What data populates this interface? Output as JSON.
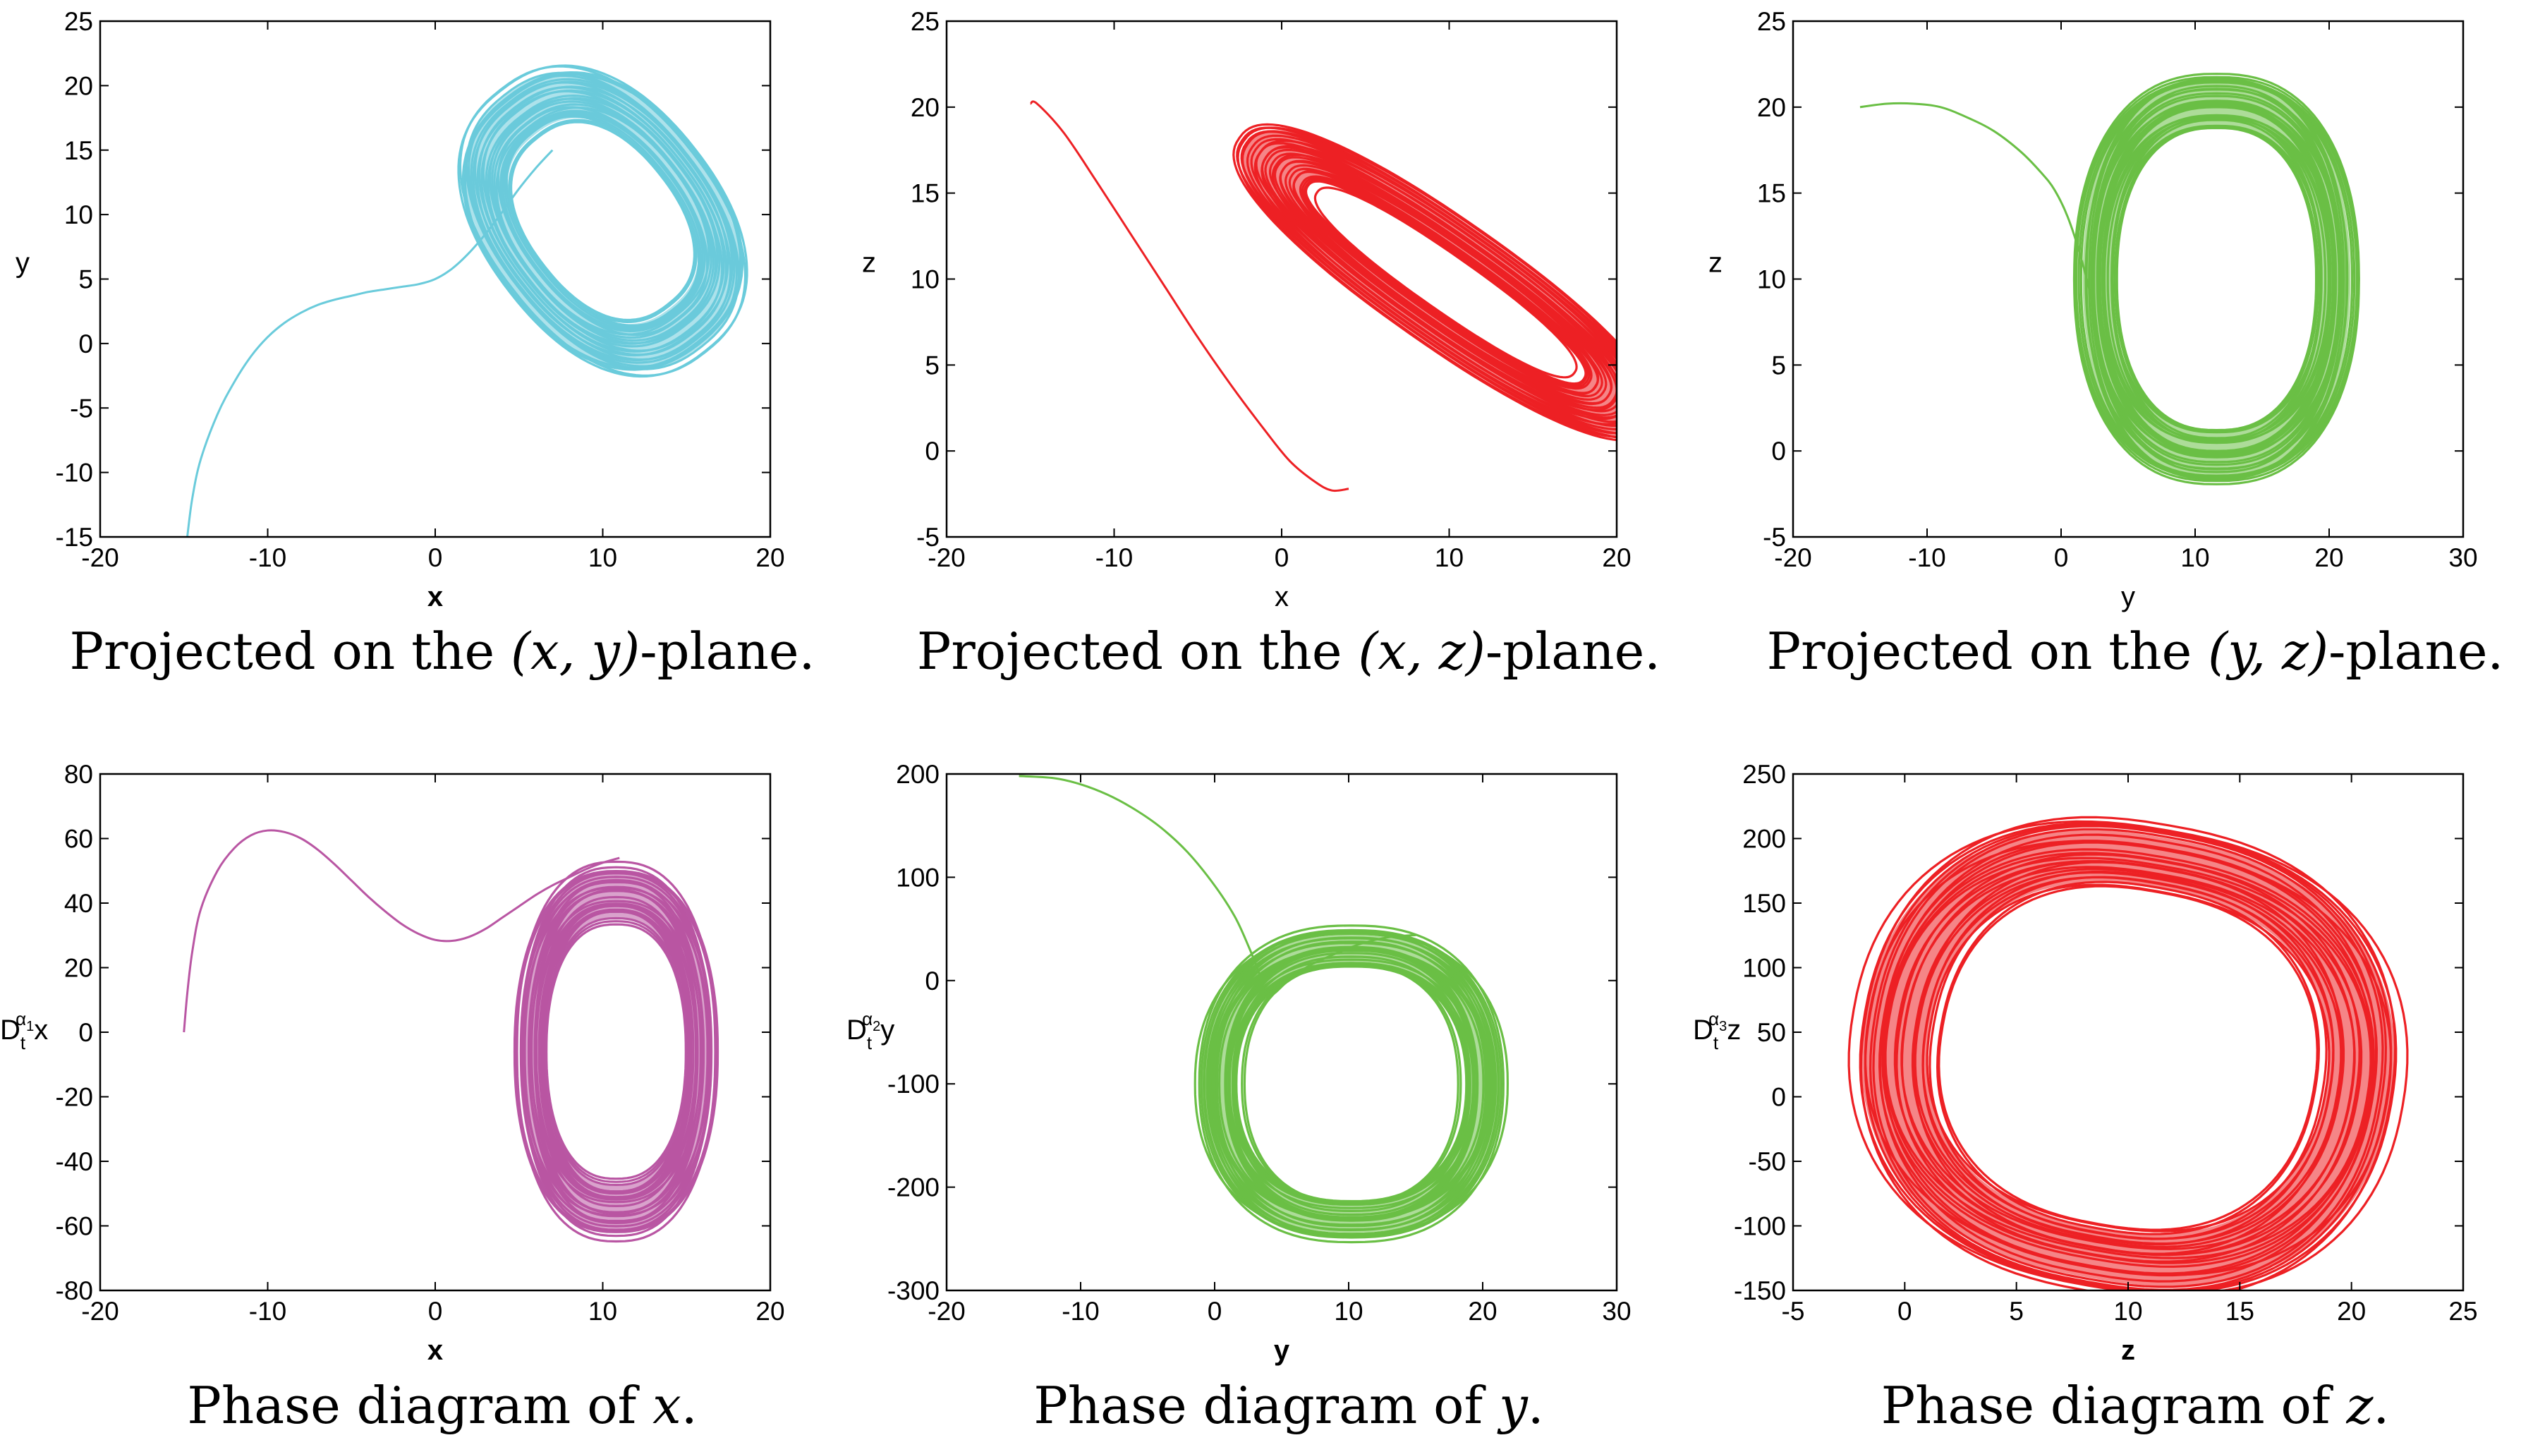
{
  "chart_data": [
    {
      "type": "line",
      "id": "p1",
      "color": "#6acbdb",
      "xlabel": "x",
      "ylabel": "y",
      "xlabel_bold": true,
      "xlim": [
        -20,
        20
      ],
      "ylim": [
        -15,
        25
      ],
      "xticks": [
        -20,
        -10,
        0,
        10,
        20
      ],
      "yticks": [
        -15,
        -10,
        -5,
        0,
        5,
        10,
        15,
        20,
        25
      ],
      "caption": "Projected on the (x, y)-plane.",
      "series": [
        {
          "name": "transient",
          "x": [
            -14.8,
            -14.5,
            -14,
            -13,
            -12,
            -11,
            -10,
            -9,
            -8,
            -7,
            -6,
            -5,
            -4,
            -3,
            -2,
            -1,
            0,
            1,
            2,
            3,
            4,
            5,
            6,
            7
          ],
          "y": [
            -15,
            -12,
            -9,
            -5.5,
            -3,
            -1,
            0.5,
            1.6,
            2.4,
            3,
            3.4,
            3.7,
            4,
            4.2,
            4.4,
            4.6,
            5,
            5.8,
            7,
            8.5,
            10.2,
            12,
            13.6,
            15
          ]
        },
        {
          "name": "attractor",
          "center": [
            10,
            9.5
          ],
          "radius_outer": [
            7,
            12.8
          ],
          "radius_inner": [
            4.4,
            8.2
          ],
          "tilt_deg": 38
        }
      ]
    },
    {
      "type": "line",
      "id": "p2",
      "color": "#ed2024",
      "xlabel": "x",
      "ylabel": "z",
      "xlabel_bold": false,
      "xlim": [
        -20,
        20
      ],
      "ylim": [
        -5,
        25
      ],
      "xticks": [
        -20,
        -10,
        0,
        10,
        20
      ],
      "yticks": [
        -5,
        0,
        5,
        10,
        15,
        20,
        25
      ],
      "caption": "Projected on the (x, z)-plane.",
      "series": [
        {
          "name": "transient",
          "x": [
            -15,
            -14.6,
            -13,
            -11,
            -9,
            -7,
            -5,
            -3,
            -1,
            0.5,
            2,
            3,
            4
          ],
          "y": [
            20.2,
            20.2,
            18.5,
            15.6,
            12.6,
            9.6,
            6.6,
            3.8,
            1.2,
            -0.6,
            -1.8,
            -2.3,
            -2.2
          ]
        },
        {
          "name": "attractor",
          "center": [
            9.8,
            9.8
          ],
          "radius_outer": [
            3.7,
            14.8
          ],
          "radius_inner": [
            1.6,
            9.4
          ],
          "tilt_deg": 55
        }
      ]
    },
    {
      "type": "line",
      "id": "p3",
      "color": "#6abf45",
      "xlabel": "y",
      "ylabel": "z",
      "xlabel_bold": false,
      "xlim": [
        -20,
        30
      ],
      "ylim": [
        -5,
        25
      ],
      "xticks": [
        -20,
        -10,
        0,
        10,
        20,
        30
      ],
      "yticks": [
        -5,
        0,
        5,
        10,
        15,
        20,
        25
      ],
      "caption": "Projected on the (y, z)-plane.",
      "series": [
        {
          "name": "transient",
          "x": [
            -15,
            -13,
            -11,
            -9,
            -7,
            -5,
            -3,
            -1.5,
            -0.5,
            0.5,
            1.5,
            2.5,
            3
          ],
          "y": [
            20,
            20.2,
            20.2,
            20,
            19.4,
            18.6,
            17.4,
            16.2,
            15.2,
            13.6,
            11.2,
            8,
            5
          ]
        },
        {
          "name": "attractor",
          "center": [
            11.6,
            10
          ],
          "radius_outer": [
            10.4,
            12.2
          ],
          "radius_inner": [
            7.6,
            8.6
          ],
          "tilt_deg": 0
        }
      ]
    },
    {
      "type": "line",
      "id": "p4",
      "color": "#b956a3",
      "xlabel": "x",
      "ylabel": "D_t^{α1} x",
      "xlabel_bold": true,
      "xlim": [
        -20,
        20
      ],
      "ylim": [
        -80,
        80
      ],
      "xticks": [
        -20,
        -10,
        0,
        10,
        20
      ],
      "yticks": [
        -80,
        -60,
        -40,
        -20,
        0,
        20,
        40,
        60,
        80
      ],
      "caption": "Phase diagram of x.",
      "series": [
        {
          "name": "transient",
          "x": [
            -15,
            -14.8,
            -14.5,
            -14,
            -13,
            -12,
            -11,
            -10,
            -9,
            -8,
            -7,
            -6,
            -5,
            -4,
            -3,
            -2,
            -1,
            0,
            1,
            2,
            3,
            4,
            5,
            6,
            7,
            8,
            9,
            10,
            11
          ],
          "y": [
            0,
            12,
            25,
            38,
            50,
            57,
            61,
            62.5,
            62,
            60,
            56.5,
            52,
            47,
            42,
            37.5,
            33.5,
            30.5,
            28.6,
            28.3,
            29.5,
            32,
            35.5,
            39,
            42.5,
            45.5,
            48,
            50.5,
            52.5,
            54
          ]
        },
        {
          "name": "attractor",
          "center": [
            10.8,
            -6
          ],
          "radius_outer": [
            6,
            58
          ],
          "radius_inner": [
            4.1,
            40
          ],
          "tilt_deg": 0
        }
      ]
    },
    {
      "type": "line",
      "id": "p5",
      "color": "#6abf45",
      "xlabel": "y",
      "ylabel": "D_t^{α2} y",
      "xlabel_bold": true,
      "xlim": [
        -20,
        30
      ],
      "ylim": [
        -300,
        200
      ],
      "xticks": [
        -20,
        -10,
        0,
        10,
        20,
        30
      ],
      "yticks": [
        -300,
        -200,
        -100,
        0,
        100,
        200
      ],
      "caption": "Phase diagram of y.",
      "series": [
        {
          "name": "transient",
          "x": [
            -14.6,
            -12,
            -10,
            -8,
            -6,
            -4,
            -2,
            0,
            1.5,
            2.5,
            3.3,
            3.9,
            4.5,
            5.5,
            7,
            9,
            11,
            13,
            15
          ],
          "y": [
            198,
            196,
            190,
            180,
            166,
            148,
            124,
            92,
            62,
            34,
            8,
            -16,
            -12,
            0,
            14,
            26,
            36,
            42,
            44
          ]
        },
        {
          "name": "attractor",
          "center": [
            10.2,
            -100
          ],
          "radius_outer": [
            11.6,
            150
          ],
          "radius_inner": [
            8.2,
            112
          ],
          "tilt_deg": 0
        }
      ]
    },
    {
      "type": "line",
      "id": "p6",
      "color": "#ed2024",
      "xlabel": "z",
      "ylabel": "D_t^{α3} z",
      "xlabel_bold": true,
      "xlim": [
        -5,
        25
      ],
      "ylim": [
        -150,
        250
      ],
      "xticks": [
        -5,
        0,
        5,
        10,
        15,
        20,
        25
      ],
      "yticks": [
        -150,
        -100,
        -50,
        0,
        50,
        100,
        150,
        200,
        250
      ],
      "caption": "Phase diagram of z.",
      "series": [
        {
          "name": "attractor",
          "center": [
            10,
            30
          ],
          "radius_outer": [
            12.4,
            180
          ],
          "radius_inner": [
            8.6,
            128
          ],
          "tilt_deg": -10
        }
      ]
    }
  ],
  "captions": [
    {
      "prefix": "Projected on the ",
      "math": "(x, y)",
      "suffix": "-plane."
    },
    {
      "prefix": "Projected on the ",
      "math": "(x, z)",
      "suffix": "-plane."
    },
    {
      "prefix": "Projected on the ",
      "math": "(y, z)",
      "suffix": "-plane."
    },
    {
      "prefix": "Phase diagram of ",
      "math": "x",
      "suffix": "."
    },
    {
      "prefix": "Phase diagram of ",
      "math": "y",
      "suffix": "."
    },
    {
      "prefix": "Phase diagram of ",
      "math": "z",
      "suffix": "."
    }
  ],
  "ylabels": [
    {
      "text": "y"
    },
    {
      "text": "z"
    },
    {
      "text": "z"
    },
    {
      "base": "D",
      "sub": "t",
      "sup": "α",
      "supsub": "1",
      "var": "x"
    },
    {
      "base": "D",
      "sub": "t",
      "sup": "α",
      "supsub": "2",
      "var": "y"
    },
    {
      "base": "D",
      "sub": "t",
      "sup": "α",
      "supsub": "3",
      "var": "z"
    }
  ]
}
